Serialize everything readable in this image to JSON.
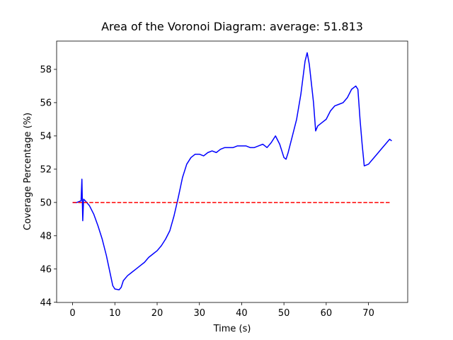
{
  "chart_data": {
    "type": "line",
    "title": "Area of the Voronoi Diagram: average: 51.813",
    "xlabel": "Time (s)",
    "ylabel": "Coverage Percentage (%)",
    "xlim": [
      -3.78,
      79.28
    ],
    "ylim": [
      43.99,
      59.7
    ],
    "xticks": [
      0,
      10,
      20,
      30,
      40,
      50,
      60,
      70
    ],
    "yticks": [
      44,
      46,
      48,
      50,
      52,
      54,
      56,
      58
    ],
    "grid": false,
    "series": [
      {
        "color": "#0000ff",
        "linestyle": "solid",
        "x": [
          0,
          1,
          1.5,
          2,
          2.2,
          2.4,
          2.6,
          3,
          4,
          5,
          6,
          7,
          8,
          8.5,
          9,
          9.5,
          10,
          11,
          11.5,
          12,
          13,
          14,
          15,
          16,
          17,
          18,
          19,
          20,
          21,
          22,
          23,
          24,
          25,
          26,
          27,
          28,
          29,
          30,
          31,
          32,
          33,
          34,
          35,
          36,
          37,
          38,
          39,
          40,
          41,
          42,
          43,
          44,
          45,
          46,
          47,
          48,
          49,
          50,
          50.5,
          51,
          52,
          53,
          54,
          55,
          55.5,
          56,
          57,
          57.5,
          58,
          59,
          60,
          61,
          62,
          63,
          64,
          65,
          66,
          67,
          67.5,
          68,
          68.5,
          69,
          70,
          71,
          72,
          73,
          74,
          75,
          75.5
        ],
        "values": [
          50.0,
          50.0,
          50.05,
          50.1,
          51.4,
          48.9,
          50.2,
          50.1,
          49.8,
          49.3,
          48.6,
          47.8,
          46.8,
          46.2,
          45.6,
          45.0,
          44.8,
          44.75,
          44.9,
          45.3,
          45.6,
          45.8,
          46.0,
          46.2,
          46.4,
          46.7,
          46.9,
          47.1,
          47.4,
          47.8,
          48.3,
          49.2,
          50.3,
          51.5,
          52.3,
          52.7,
          52.9,
          52.9,
          52.8,
          53.0,
          53.1,
          53.0,
          53.2,
          53.3,
          53.3,
          53.3,
          53.4,
          53.4,
          53.4,
          53.3,
          53.3,
          53.4,
          53.5,
          53.3,
          53.6,
          54.0,
          53.5,
          52.7,
          52.6,
          53.0,
          54.0,
          55.0,
          56.5,
          58.5,
          59.0,
          58.3,
          56.0,
          54.3,
          54.6,
          54.8,
          55.0,
          55.5,
          55.8,
          55.9,
          56.0,
          56.3,
          56.8,
          57.0,
          56.8,
          55.0,
          53.5,
          52.2,
          52.3,
          52.6,
          52.9,
          53.2,
          53.5,
          53.8,
          53.7
        ]
      },
      {
        "color": "#ff0000",
        "linestyle": "dashed",
        "x": [
          0,
          75
        ],
        "values": [
          50,
          50
        ]
      }
    ]
  }
}
